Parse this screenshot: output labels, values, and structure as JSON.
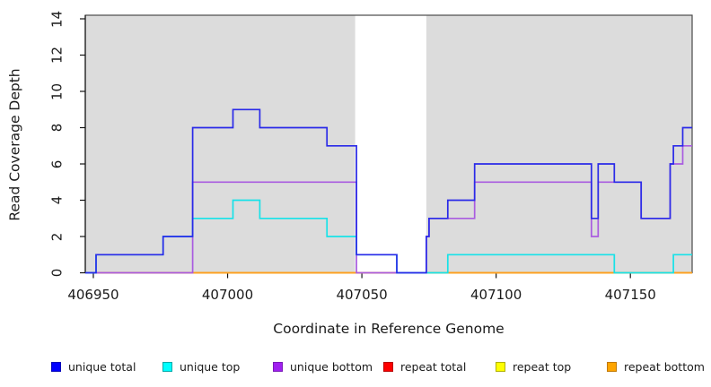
{
  "chart_data": {
    "type": "line",
    "subtype": "step-coverage",
    "title": "",
    "xlabel": "Coordinate in Reference Genome",
    "ylabel": "Read Coverage Depth",
    "x_ticks": [
      "406950",
      "407000",
      "407050",
      "407100",
      "407150"
    ],
    "x_tick_values": [
      406950,
      407000,
      407050,
      407100,
      407150
    ],
    "y_ticks": [
      "0",
      "2",
      "4",
      "6",
      "8",
      "10",
      "12",
      "14"
    ],
    "y_tick_values": [
      0,
      2,
      4,
      6,
      8,
      10,
      12,
      14
    ],
    "x_range": [
      406947,
      407173
    ],
    "y_range": [
      0,
      14.2
    ],
    "grid": false,
    "panel_color": "#dcdcdc",
    "gap_region": [
      407047.5,
      407074
    ],
    "panel_segments": [
      [
        406947,
        407047.5
      ],
      [
        407074,
        407173
      ]
    ],
    "series": [
      {
        "name": "repeat total",
        "color": "#e82a2a",
        "steps": [
          [
            406947,
            0
          ]
        ]
      },
      {
        "name": "repeat top",
        "color": "#e8e82a",
        "steps": [
          [
            406947,
            0
          ]
        ]
      },
      {
        "name": "repeat bottom",
        "color": "#ff9e1f",
        "steps": [
          [
            406947,
            0
          ]
        ]
      },
      {
        "name": "unique bottom",
        "color": "#a95ce0",
        "steps": [
          [
            406947,
            0
          ],
          [
            406987,
            5
          ],
          [
            407048,
            0
          ],
          [
            407074,
            2
          ],
          [
            407075,
            3
          ],
          [
            407092,
            5
          ],
          [
            407135.5,
            2
          ],
          [
            407138,
            5
          ],
          [
            407154,
            3
          ],
          [
            407164.8,
            6
          ],
          [
            407169.5,
            7
          ]
        ]
      },
      {
        "name": "unique top",
        "color": "#17e2e8",
        "steps": [
          [
            406947,
            0
          ],
          [
            406951,
            1
          ],
          [
            406976,
            2
          ],
          [
            406987,
            3
          ],
          [
            407002,
            4
          ],
          [
            407012,
            3
          ],
          [
            407037,
            2
          ],
          [
            407048,
            1
          ],
          [
            407063,
            0
          ],
          [
            407082,
            1
          ],
          [
            407144,
            0
          ],
          [
            407166,
            1
          ]
        ]
      },
      {
        "name": "unique total",
        "color": "#2a2ae8",
        "steps": [
          [
            406947,
            0
          ],
          [
            406951,
            1
          ],
          [
            406976,
            2
          ],
          [
            406987,
            8
          ],
          [
            407002,
            9
          ],
          [
            407012,
            8
          ],
          [
            407037,
            7
          ],
          [
            407048,
            1
          ],
          [
            407063,
            0
          ],
          [
            407074,
            2
          ],
          [
            407075,
            3
          ],
          [
            407082,
            4
          ],
          [
            407092,
            6
          ],
          [
            407135.5,
            3
          ],
          [
            407138,
            6
          ],
          [
            407144,
            5
          ],
          [
            407154,
            3
          ],
          [
            407164.8,
            6
          ],
          [
            407166,
            7
          ],
          [
            407169.5,
            8
          ]
        ]
      }
    ],
    "legend": {
      "position": "bottom",
      "items": [
        {
          "label": "unique total",
          "fill": "#0000ff",
          "border": "#0000b8"
        },
        {
          "label": "unique top",
          "fill": "#00ffff",
          "border": "#00a8a8"
        },
        {
          "label": "unique bottom",
          "fill": "#a020f0",
          "border": "#7a1bb8"
        },
        {
          "label": "repeat total",
          "fill": "#ff0000",
          "border": "#b80000"
        },
        {
          "label": "repeat top",
          "fill": "#ffff00",
          "border": "#b0b000"
        },
        {
          "label": "repeat bottom",
          "fill": "#ffa500",
          "border": "#c07800"
        }
      ]
    },
    "colors": {
      "axis": "#141414",
      "box": "#4a4a4a",
      "text": "#1a1a1a"
    }
  }
}
